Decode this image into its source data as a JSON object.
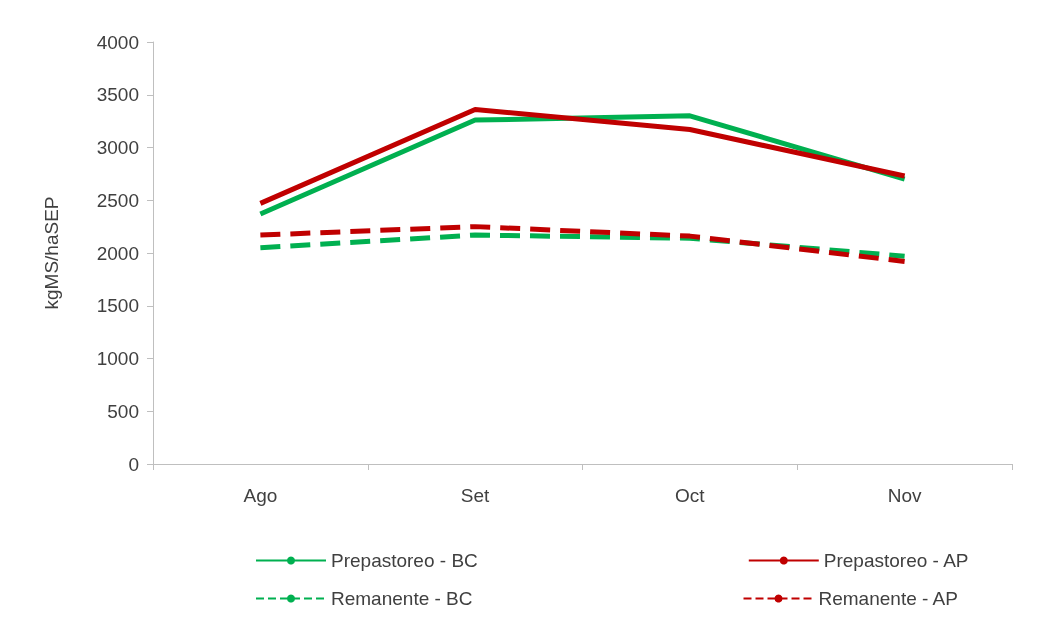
{
  "chart_data": {
    "type": "line",
    "ylabel": "kgMS/haSEP",
    "categories": [
      "Ago",
      "Set",
      "Oct",
      "Nov"
    ],
    "ylim": [
      0,
      4000
    ],
    "yticks": [
      0,
      500,
      1000,
      1500,
      2000,
      2500,
      3000,
      3500,
      4000
    ],
    "grid": false,
    "legend": "bottom",
    "marker": "none",
    "series": [
      {
        "name": "Prepastoreo - BC",
        "color": "#00b050",
        "line_style": "solid",
        "values": [
          2370,
          3260,
          3300,
          2700
        ]
      },
      {
        "name": "Prepastoreo - AP",
        "color": "#c00000",
        "line_style": "solid",
        "values": [
          2470,
          3360,
          3170,
          2730
        ]
      },
      {
        "name": "Remanente - BC",
        "color": "#00b050",
        "line_style": "dashed",
        "values": [
          2050,
          2170,
          2140,
          1970
        ]
      },
      {
        "name": "Remanente - AP",
        "color": "#c00000",
        "line_style": "dashed",
        "values": [
          2170,
          2250,
          2160,
          1920
        ]
      }
    ]
  }
}
